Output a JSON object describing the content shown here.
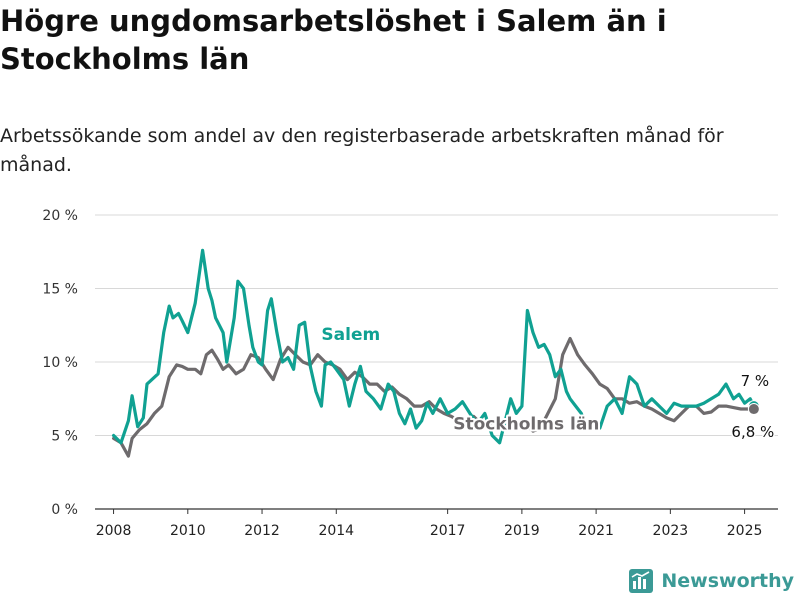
{
  "title": "Högre ungdomsarbetslöshet i Salem än i Stockholms län",
  "subtitle": "Arbetssökande som andel av den registerbaserade arbetskraften månad för månad.",
  "brand": {
    "name": "Newsworthy",
    "icon": "newsworthy-logo-icon"
  },
  "colors": {
    "salem": "#10a192",
    "stockholm": "#6e6b6d",
    "grid": "#d8d8d8",
    "axis": "#333333",
    "brand": "#3b9a96"
  },
  "chart_data": {
    "type": "line",
    "title": "Högre ungdomsarbetslöshet i Salem än i Stockholms län",
    "subtitle": "Arbetssökande som andel av den registerbaserade arbetskraften månad för månad.",
    "xlabel": "",
    "ylabel": "",
    "ylim": [
      0,
      20
    ],
    "xlim": [
      2007.5,
      2025.9
    ],
    "yticks": [
      0,
      5,
      10,
      15,
      20
    ],
    "ytick_labels": [
      "0 %",
      "5 %",
      "10 %",
      "15 %",
      "20 %"
    ],
    "xticks": [
      2008,
      2010,
      2012,
      2014,
      2017,
      2019,
      2021,
      2023,
      2025
    ],
    "xtick_labels": [
      "2008",
      "2010",
      "2012",
      "2014",
      "2017",
      "2019",
      "2021",
      "2023",
      "2025"
    ],
    "grid": "horizontal",
    "legend": "inline labels",
    "series": [
      {
        "name": "Salem",
        "label_x": 2013.6,
        "label_y": 11.5,
        "end_label": "7 %",
        "x": [
          2008.0,
          2008.2,
          2008.4,
          2008.5,
          2008.65,
          2008.8,
          2008.9,
          2009.2,
          2009.35,
          2009.5,
          2009.6,
          2009.75,
          2009.85,
          2010.0,
          2010.2,
          2010.4,
          2010.55,
          2010.65,
          2010.75,
          2010.85,
          2010.95,
          2011.05,
          2011.25,
          2011.35,
          2011.5,
          2011.65,
          2011.75,
          2011.9,
          2012.0,
          2012.15,
          2012.25,
          2012.4,
          2012.55,
          2012.7,
          2012.85,
          2013.0,
          2013.15,
          2013.3,
          2013.45,
          2013.6,
          2013.7,
          2013.85,
          2014.0,
          2014.2,
          2014.35,
          2014.5,
          2014.65,
          2014.8,
          2015.0,
          2015.2,
          2015.4,
          2015.55,
          2015.7,
          2015.85,
          2016.0,
          2016.15,
          2016.3,
          2016.45,
          2016.6,
          2016.8,
          2017.0,
          2017.2,
          2017.4,
          2017.6,
          2017.8,
          2018.0,
          2018.2,
          2018.4,
          2018.55,
          2018.7,
          2018.85,
          2019.0,
          2019.15,
          2019.3,
          2019.45,
          2019.6,
          2019.75,
          2019.9,
          2020.05,
          2020.2,
          2020.3,
          2020.45,
          2020.6,
          2020.75,
          2020.9,
          2021.1,
          2021.3,
          2021.5,
          2021.7,
          2021.9,
          2022.1,
          2022.3,
          2022.5,
          2022.7,
          2022.9,
          2023.1,
          2023.3,
          2023.5,
          2023.7,
          2023.9,
          2024.1,
          2024.3,
          2024.5,
          2024.7,
          2024.85,
          2025.0,
          2025.15,
          2025.25
        ],
        "values": [
          5.0,
          4.5,
          6.0,
          7.7,
          5.6,
          6.2,
          8.5,
          9.2,
          12.0,
          13.8,
          13.0,
          13.3,
          12.8,
          12.0,
          14.0,
          17.6,
          15.0,
          14.2,
          13.0,
          12.5,
          12.0,
          10.0,
          13.0,
          15.5,
          15.0,
          12.5,
          11.0,
          10.0,
          9.8,
          13.5,
          14.3,
          12.0,
          10.0,
          10.3,
          9.5,
          12.5,
          12.7,
          9.7,
          8.0,
          7.0,
          9.8,
          10.0,
          9.5,
          8.8,
          7.0,
          8.5,
          9.7,
          8.0,
          7.5,
          6.8,
          8.5,
          8.0,
          6.5,
          5.8,
          6.8,
          5.5,
          6.0,
          7.2,
          6.5,
          7.5,
          6.5,
          6.8,
          7.3,
          6.5,
          5.8,
          6.5,
          5.0,
          4.5,
          6.0,
          7.5,
          6.5,
          7.0,
          13.5,
          12.0,
          11.0,
          11.2,
          10.5,
          9.0,
          9.5,
          8.0,
          7.5,
          7.0,
          6.5,
          5.5,
          5.5,
          5.5,
          7.0,
          7.5,
          6.5,
          9.0,
          8.5,
          7.0,
          7.5,
          7.0,
          6.5,
          7.2,
          7.0,
          7.0,
          7.0,
          7.2,
          7.5,
          7.8,
          8.5,
          7.5,
          7.8,
          7.2,
          7.5,
          7.0
        ],
        "dot": true
      },
      {
        "name": "Stockholms län",
        "label_x": 2017.15,
        "label_y": 5.4,
        "end_label": "6,8 %",
        "x": [
          2008.0,
          2008.2,
          2008.4,
          2008.5,
          2008.7,
          2008.9,
          2009.1,
          2009.3,
          2009.5,
          2009.7,
          2009.85,
          2010.0,
          2010.2,
          2010.35,
          2010.5,
          2010.65,
          2010.8,
          2010.95,
          2011.1,
          2011.3,
          2011.5,
          2011.7,
          2011.9,
          2012.1,
          2012.3,
          2012.5,
          2012.7,
          2012.9,
          2013.1,
          2013.3,
          2013.5,
          2013.7,
          2013.9,
          2014.1,
          2014.3,
          2014.5,
          2014.7,
          2014.9,
          2015.1,
          2015.3,
          2015.5,
          2015.7,
          2015.9,
          2016.1,
          2016.3,
          2016.5,
          2016.7,
          2016.9,
          2017.1,
          2017.3,
          2017.5,
          2017.7,
          2017.9,
          2018.1,
          2018.3,
          2018.5,
          2018.7,
          2018.9,
          2019.1,
          2019.3,
          2019.5,
          2019.7,
          2019.9,
          2020.1,
          2020.3,
          2020.5,
          2020.7,
          2020.9,
          2021.1,
          2021.3,
          2021.5,
          2021.7,
          2021.9,
          2022.1,
          2022.3,
          2022.5,
          2022.7,
          2022.9,
          2023.1,
          2023.3,
          2023.5,
          2023.7,
          2023.9,
          2024.1,
          2024.3,
          2024.5,
          2024.7,
          2024.9,
          2025.1,
          2025.25
        ],
        "values": [
          4.8,
          4.5,
          3.6,
          4.8,
          5.4,
          5.8,
          6.5,
          7.0,
          9.0,
          9.8,
          9.7,
          9.5,
          9.5,
          9.2,
          10.5,
          10.8,
          10.2,
          9.5,
          9.8,
          9.2,
          9.5,
          10.5,
          10.3,
          9.5,
          8.8,
          10.2,
          11.0,
          10.5,
          10.0,
          9.8,
          10.5,
          10.0,
          9.8,
          9.5,
          8.8,
          9.3,
          9.0,
          8.5,
          8.5,
          8.0,
          8.3,
          7.8,
          7.5,
          7.0,
          7.0,
          7.3,
          6.8,
          6.5,
          6.3,
          6.0,
          6.0,
          6.3,
          5.8,
          5.8,
          6.0,
          6.0,
          5.7,
          5.6,
          5.8,
          5.3,
          5.5,
          6.5,
          7.5,
          10.5,
          11.6,
          10.5,
          9.8,
          9.2,
          8.5,
          8.2,
          7.5,
          7.5,
          7.2,
          7.3,
          7.0,
          6.8,
          6.5,
          6.2,
          6.0,
          6.5,
          7.0,
          7.0,
          6.5,
          6.6,
          7.0,
          7.0,
          6.9,
          6.8,
          6.8,
          6.8
        ],
        "dot": true
      }
    ]
  }
}
